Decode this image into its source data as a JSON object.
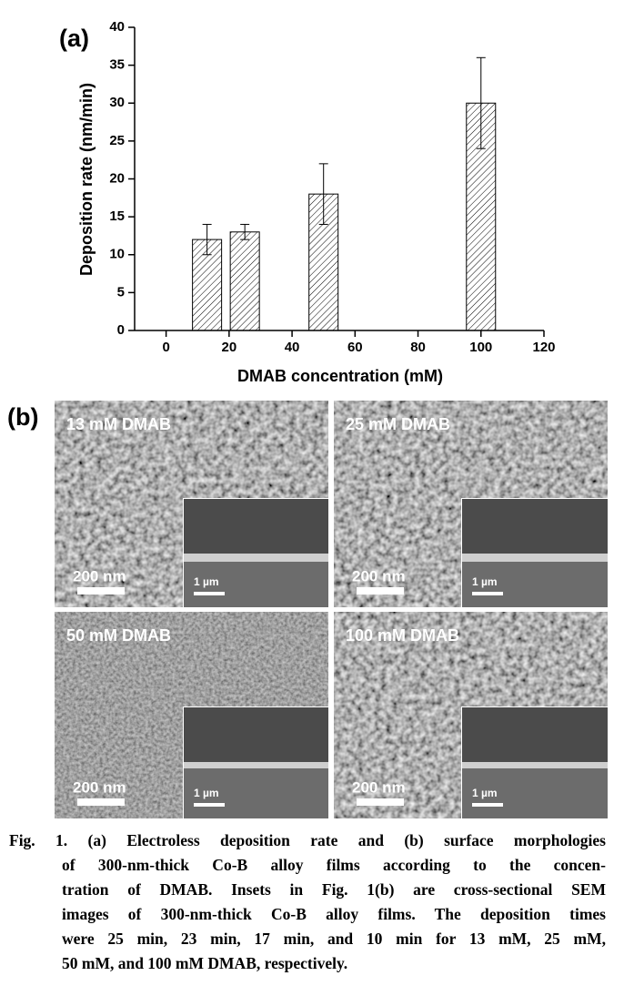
{
  "chart_data": {
    "type": "bar",
    "panel_label": "(a)",
    "x_label": "DMAB concentration (mM)",
    "y_label": "Deposition rate (nm/min)",
    "x": [
      13,
      25,
      50,
      100
    ],
    "values": [
      12,
      13,
      18,
      30
    ],
    "errors": [
      2,
      1,
      4,
      6
    ],
    "xlim": [
      -10,
      120
    ],
    "xticks": [
      0,
      20,
      40,
      60,
      80,
      100,
      120
    ],
    "ylim": [
      0,
      40
    ],
    "yticks": [
      0,
      5,
      10,
      15,
      20,
      25,
      30,
      35,
      40
    ],
    "color": "#ffffff",
    "hatch": "diagonal"
  },
  "figure_b": {
    "panel_label": "(b)",
    "panels": [
      {
        "label": "13 mM DMAB",
        "scale_bar": "200 nm",
        "inset_scale_bar": "1 µm"
      },
      {
        "label": "25 mM DMAB",
        "scale_bar": "200 nm",
        "inset_scale_bar": "1 µm"
      },
      {
        "label": "50 mM DMAB",
        "scale_bar": "200 nm",
        "inset_scale_bar": "1 µm"
      },
      {
        "label": "100 mM DMAB",
        "scale_bar": "200 nm",
        "inset_scale_bar": "1 µm"
      }
    ]
  },
  "caption": {
    "lines": [
      "Fig. 1. (a) Electroless deposition rate and (b) surface morphologies",
      "of 300-nm-thick Co-B alloy films according to the concen-",
      "tration of DMAB. Insets in Fig. 1(b) are cross-sectional SEM",
      "images of 300-nm-thick Co-B alloy films. The deposition times",
      "were 25 min, 23 min, 17 min, and 10 min for 13 mM, 25 mM,",
      "50 mM, and 100 mM DMAB, respectively."
    ]
  }
}
